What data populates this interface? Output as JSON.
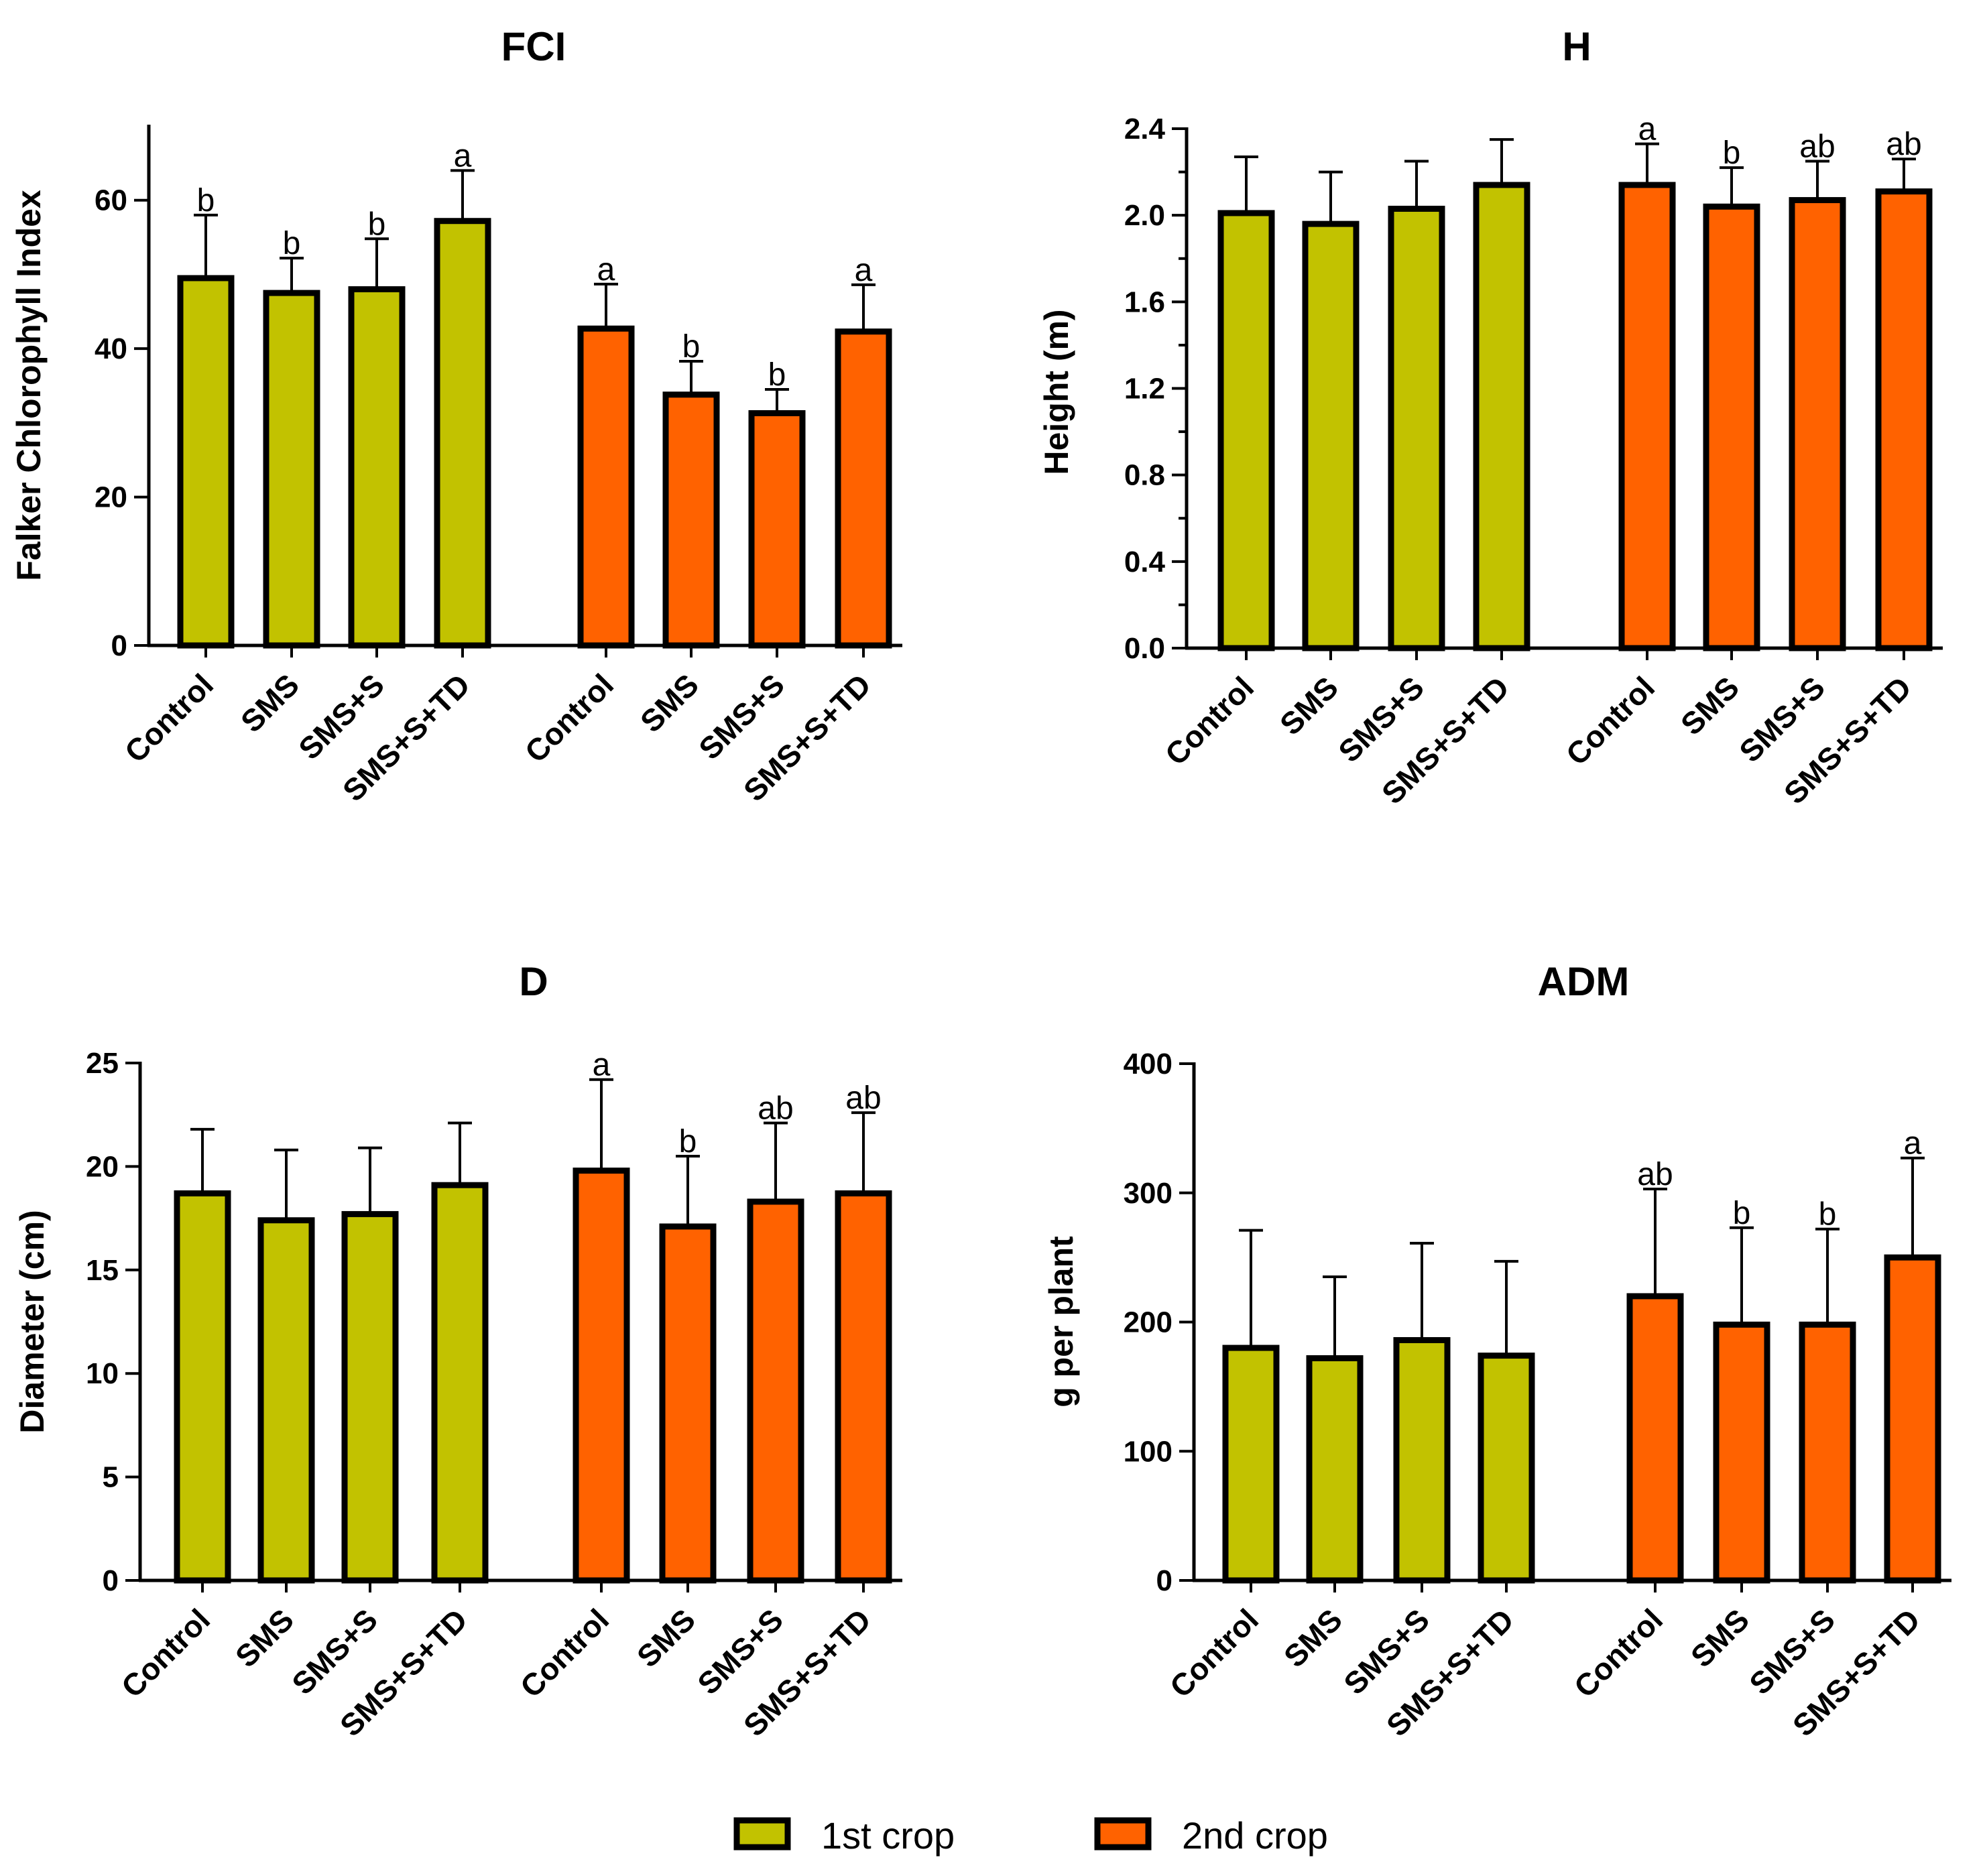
{
  "colors": {
    "first_crop": "#C2C200",
    "second_crop": "#FF6200",
    "outline": "#000000"
  },
  "legend": [
    {
      "label": "1st crop",
      "color_key": "first_crop"
    },
    {
      "label": "2nd crop",
      "color_key": "second_crop"
    }
  ],
  "chart_data": [
    {
      "type": "bar",
      "title": "FCI",
      "xlabel": "",
      "ylabel": "Falker  Chlorophyll Index",
      "ylim": [
        0,
        70
      ],
      "yticks": [
        0,
        20,
        40,
        60
      ],
      "ytick_labels": [
        "0",
        "20",
        "40",
        "60"
      ],
      "categories": [
        "Control",
        "SMS",
        "SMS+S",
        "SMS+S+TD"
      ],
      "series": [
        {
          "name": "1st crop",
          "values": [
            49.5,
            47.5,
            48,
            57.2
          ],
          "errors": [
            8.5,
            4.7,
            6.8,
            6.8
          ],
          "letters": [
            "b",
            "b",
            "b",
            "a"
          ]
        },
        {
          "name": "2nd crop",
          "values": [
            42.7,
            33.8,
            31.3,
            42.3
          ],
          "errors": [
            6.0,
            4.5,
            3.2,
            6.3
          ],
          "letters": [
            "a",
            "b",
            "b",
            "a"
          ]
        }
      ]
    },
    {
      "type": "bar",
      "title": "H",
      "xlabel": "",
      "ylabel": "Height (m)",
      "ylim": [
        0,
        2.4
      ],
      "yticks": [
        0,
        0.4,
        0.8,
        1.2,
        1.6,
        2.0,
        2.4
      ],
      "ytick_labels": [
        "0.0",
        "0.4",
        "0.8",
        "1.2",
        "1.6",
        "2.0",
        "2.4"
      ],
      "categories": [
        "Control",
        "SMS",
        "SMS+S",
        "SMS+S+TD"
      ],
      "series": [
        {
          "name": "1st crop",
          "values": [
            2.01,
            1.96,
            2.03,
            2.14
          ],
          "errors": [
            0.26,
            0.24,
            0.22,
            0.21
          ],
          "letters": [
            "",
            "",
            "",
            ""
          ]
        },
        {
          "name": "2nd crop",
          "values": [
            2.14,
            2.04,
            2.07,
            2.11
          ],
          "errors": [
            0.19,
            0.18,
            0.18,
            0.15
          ],
          "letters": [
            "a",
            "b",
            "ab",
            "ab"
          ]
        }
      ]
    },
    {
      "type": "bar",
      "title": "D",
      "xlabel": "",
      "ylabel": "Diameter (cm)",
      "ylim": [
        0,
        25
      ],
      "yticks": [
        0,
        5,
        10,
        15,
        20,
        25
      ],
      "ytick_labels": [
        "0",
        "5",
        "10",
        "15",
        "20",
        "25"
      ],
      "categories": [
        "Control",
        "SMS",
        "SMS+S",
        "SMS+S+TD"
      ],
      "series": [
        {
          "name": "1st crop",
          "values": [
            18.7,
            17.4,
            17.7,
            19.1
          ],
          "errors": [
            3.1,
            3.4,
            3.2,
            3.0
          ],
          "letters": [
            "",
            "",
            "",
            ""
          ]
        },
        {
          "name": "2nd crop",
          "values": [
            19.8,
            17.1,
            18.3,
            18.7
          ],
          "errors": [
            4.4,
            3.4,
            3.8,
            3.9
          ],
          "letters": [
            "a",
            "b",
            "ab",
            "ab"
          ]
        }
      ]
    },
    {
      "type": "bar",
      "title": "ADM",
      "xlabel": "",
      "ylabel": "g per plant",
      "ylim": [
        0,
        400
      ],
      "yticks": [
        0,
        100,
        200,
        300,
        400
      ],
      "ytick_labels": [
        "0",
        "100",
        "200",
        "300",
        "400"
      ],
      "categories": [
        "Control",
        "SMS",
        "SMS+S",
        "SMS+S+TD"
      ],
      "series": [
        {
          "name": "1st crop",
          "values": [
            180,
            172,
            186,
            174
          ],
          "errors": [
            91,
            63,
            75,
            73
          ],
          "letters": [
            "",
            "",
            "",
            ""
          ]
        },
        {
          "name": "2nd crop",
          "values": [
            220,
            198,
            198,
            250
          ],
          "errors": [
            83,
            75,
            74,
            77
          ],
          "letters": [
            "ab",
            "b",
            "b",
            "a"
          ]
        }
      ]
    }
  ]
}
